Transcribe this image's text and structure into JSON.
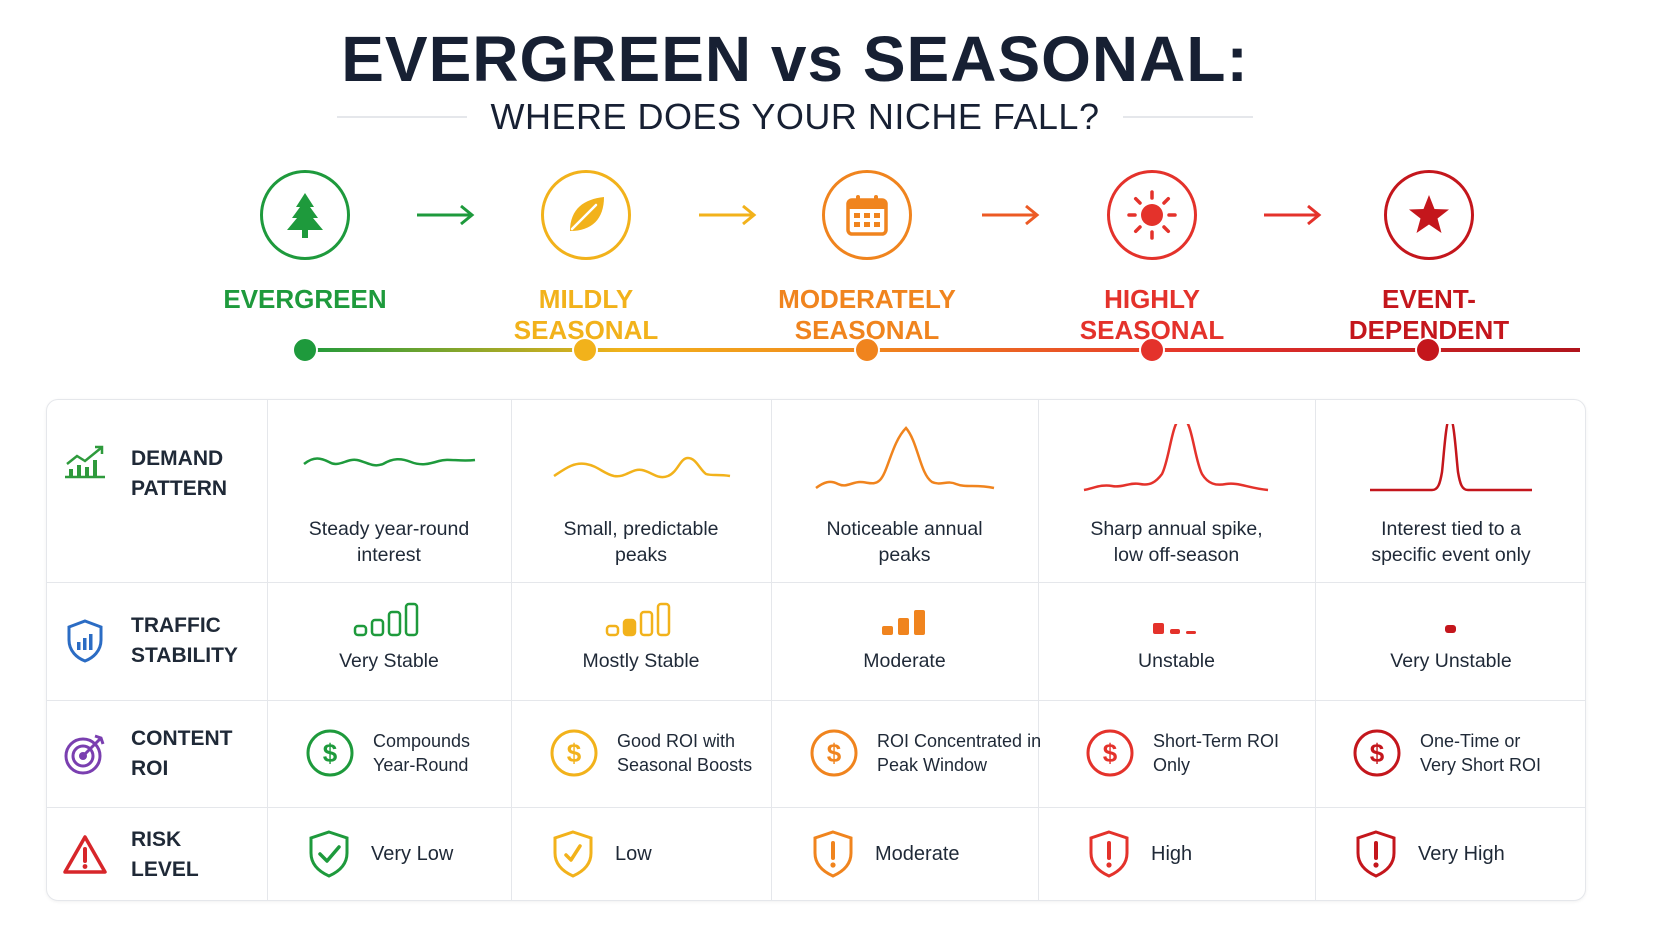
{
  "title": "EVERGREEN vs SEASONAL:",
  "subtitle": "WHERE DOES YOUR NICHE FALL?",
  "colors": {
    "evergreen": "#1e9a3c",
    "mild": "#f2b21b",
    "moderate": "#f0841e",
    "high": "#e4322b",
    "event": "#c4161c",
    "row_demand": "#2e9a3c",
    "row_traffic": "#2b6cc4",
    "row_roi": "#7a3fb0",
    "row_risk": "#d7262a"
  },
  "stages": [
    {
      "label_line1": "EVERGREEN",
      "label_line2": "",
      "icon": "tree-icon"
    },
    {
      "label_line1": "MILDLY",
      "label_line2": "SEASONAL",
      "icon": "leaf-icon"
    },
    {
      "label_line1": "MODERATELY",
      "label_line2": "SEASONAL",
      "icon": "calendar-icon"
    },
    {
      "label_line1": "HIGHLY",
      "label_line2": "SEASONAL",
      "icon": "sun-icon"
    },
    {
      "label_line1": "EVENT-",
      "label_line2": "DEPENDENT",
      "icon": "star-icon"
    }
  ],
  "rows": {
    "demand": {
      "line1": "DEMAND",
      "line2": "PATTERN",
      "icon": "trend-chart-icon"
    },
    "traffic": {
      "line1": "TRAFFIC",
      "line2": "STABILITY",
      "icon": "shield-chart-icon"
    },
    "roi": {
      "line1": "CONTENT",
      "line2": "ROI",
      "icon": "target-icon"
    },
    "risk": {
      "line1": "RISK",
      "line2": "LEVEL",
      "icon": "warning-icon"
    }
  },
  "demand": [
    {
      "line1": "Steady year-round",
      "line2": "interest"
    },
    {
      "line1": "Small, predictable",
      "line2": "peaks"
    },
    {
      "line1": "Noticeable annual",
      "line2": "peaks"
    },
    {
      "line1": "Sharp annual spike,",
      "line2": "low off-season"
    },
    {
      "line1": "Interest tied to a",
      "line2": "specific event only"
    }
  ],
  "traffic": [
    {
      "label": "Very Stable",
      "bars_shown": 4
    },
    {
      "label": "Mostly Stable",
      "bars_shown": 4
    },
    {
      "label": "Moderate",
      "bars_shown": 3
    },
    {
      "label": "Unstable",
      "bars_shown": 3
    },
    {
      "label": "Very Unstable",
      "bars_shown": 1
    }
  ],
  "roi": [
    {
      "line1": "Compounds",
      "line2": "Year-Round",
      "icon": "dollar-icon"
    },
    {
      "line1": "Good ROI with",
      "line2": "Seasonal Boosts",
      "icon": "dollar-icon"
    },
    {
      "line1": "ROI Concentrated in",
      "line2": "Peak Window",
      "icon": "dollar-icon"
    },
    {
      "line1": "Short-Term ROI",
      "line2": "Only",
      "icon": "dollar-icon"
    },
    {
      "line1": "One-Time or",
      "line2": "Very Short ROI",
      "icon": "dollar-icon"
    }
  ],
  "risk": [
    {
      "label": "Very Low",
      "icon": "shield-check-icon"
    },
    {
      "label": "Low",
      "icon": "shield-check-icon"
    },
    {
      "label": "Moderate",
      "icon": "shield-alert-icon"
    },
    {
      "label": "High",
      "icon": "shield-alert-icon"
    },
    {
      "label": "Very High",
      "icon": "shield-alert-icon"
    }
  ]
}
